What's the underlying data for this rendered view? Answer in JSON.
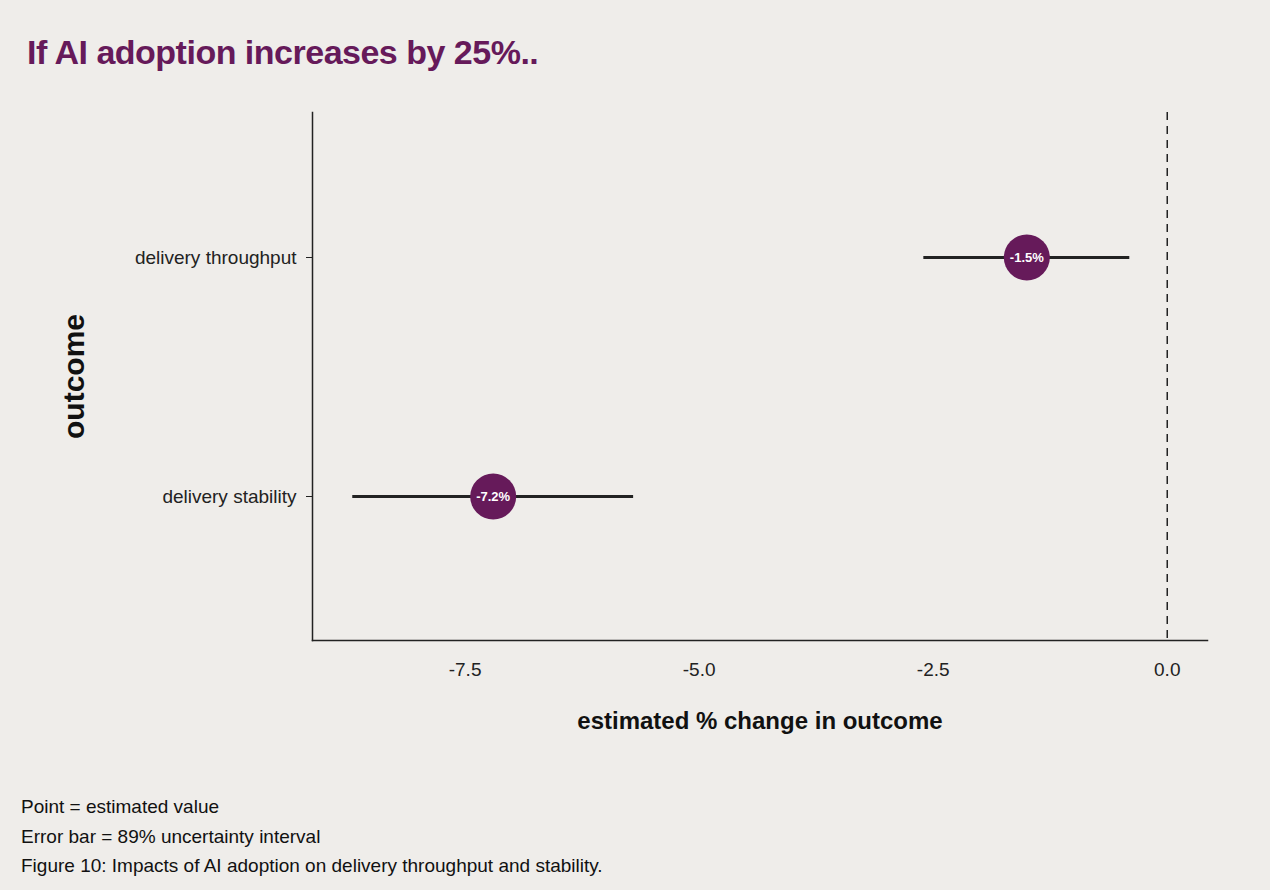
{
  "chart_data": {
    "type": "dot",
    "title": "If AI adoption increases by 25%..",
    "orientation": "horizontal",
    "categories": [
      "delivery throughput",
      "delivery stability"
    ],
    "values": [
      -1.5,
      -7.2
    ],
    "value_labels": [
      "-1.5%",
      "-7.2%"
    ],
    "data_labels": true,
    "error_bars": {
      "low": [
        -2.6,
        -8.7
      ],
      "high": [
        -0.4,
        -5.7
      ]
    },
    "color": "#661a5a",
    "xlim": [
      -9.13,
      0.43
    ],
    "xticks": [
      -7.5,
      {
        "value": -5,
        "label": "-5.0"
      },
      -2.5,
      {
        "value": 0,
        "label": "0.0"
      }
    ],
    "xlabel": "estimated % change in outcome",
    "ylabel": "outcome",
    "reference_line": {
      "x": 0,
      "line_style": "dashed"
    },
    "grid": false,
    "caption": [
      "Point = estimated value",
      "Error bar = 89% uncertainty interval",
      "Figure 10: Impacts of AI adoption on delivery throughput and stability."
    ]
  }
}
